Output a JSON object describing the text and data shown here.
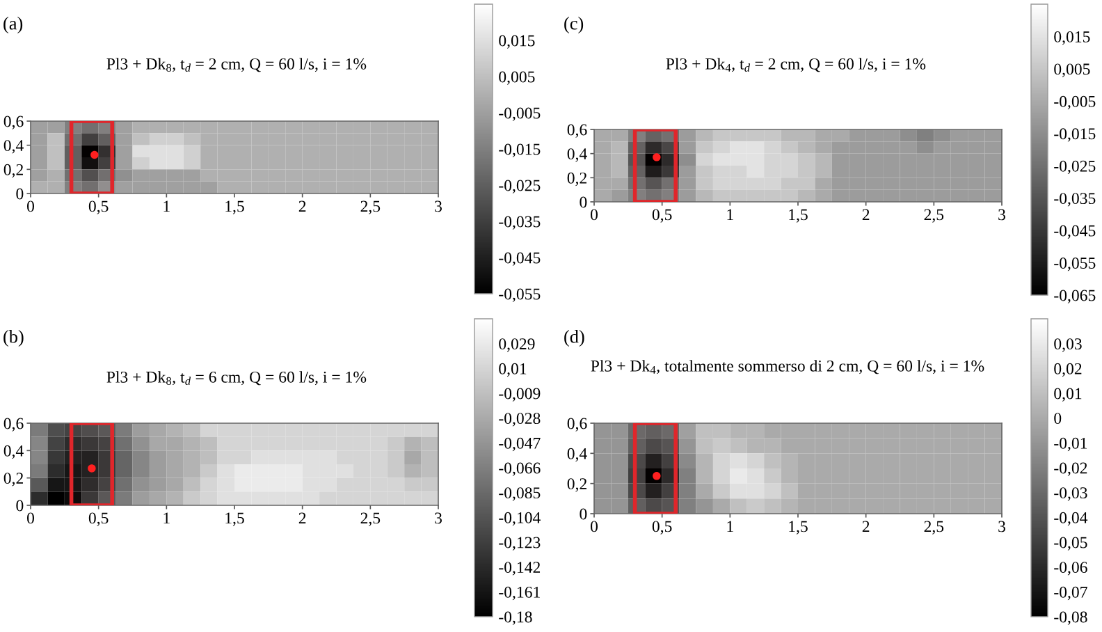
{
  "chart_data": [
    {
      "type": "heatmap",
      "title": "(a)",
      "subtitle": "Pl3 + Dk$_{8}$, t$_{d}$ = 2 cm, Q = 60 l/s, i = 1%",
      "x": [
        0.0625,
        0.1875,
        0.3125,
        0.4375,
        0.5625,
        0.6875,
        0.8125,
        0.9375,
        1.0625,
        1.1875,
        1.3125,
        1.4375,
        1.5625,
        1.6875,
        1.8125,
        1.9375,
        2.0625,
        2.1875,
        2.3125,
        2.4375,
        2.5625,
        2.6875,
        2.8125,
        2.9375
      ],
      "y": [
        0.55,
        0.45,
        0.35,
        0.25,
        0.15,
        0.05
      ],
      "cells": [
        [
          -0.005,
          -0.005,
          -0.015,
          -0.02,
          -0.015,
          -0.005,
          0,
          0,
          0,
          0,
          0,
          0,
          0,
          0,
          0,
          0,
          0,
          0,
          0,
          0,
          0,
          0,
          0,
          0
        ],
        [
          -0.005,
          0.005,
          -0.02,
          -0.035,
          -0.025,
          -0.005,
          0.005,
          0.01,
          0.01,
          0.005,
          0,
          0,
          0,
          0,
          0,
          0,
          0,
          0,
          0,
          0,
          0,
          0,
          0,
          0
        ],
        [
          -0.005,
          0.005,
          -0.025,
          -0.055,
          -0.04,
          -0.005,
          0.015,
          0.015,
          0.015,
          0.01,
          0,
          0,
          0,
          0,
          0,
          0,
          0,
          0,
          0,
          0,
          0,
          0,
          0,
          0
        ],
        [
          -0.005,
          0.005,
          -0.025,
          -0.05,
          -0.035,
          -0.005,
          0.01,
          0.015,
          0.015,
          0.01,
          0,
          0,
          0,
          0,
          0,
          0,
          0,
          0,
          0,
          0,
          0,
          0,
          0,
          0
        ],
        [
          -0.005,
          0,
          -0.02,
          -0.03,
          -0.02,
          -0.01,
          -0.005,
          -0.005,
          -0.005,
          -0.005,
          0,
          0,
          0,
          0,
          0,
          0,
          0,
          0,
          0,
          0,
          0,
          0,
          0,
          0
        ],
        [
          0,
          0,
          -0.015,
          -0.02,
          -0.01,
          -0.005,
          -0.005,
          -0.005,
          -0.005,
          -0.005,
          -0.005,
          0,
          0,
          0,
          0,
          0,
          0,
          0,
          0,
          0,
          0,
          0,
          0,
          0
        ]
      ],
      "xlim": [
        0,
        3
      ],
      "xticks": [
        0,
        {
          "value": 0.5,
          "label": "0,5"
        },
        1,
        {
          "value": 1.5,
          "label": "1,5"
        },
        2,
        {
          "value": 2.5,
          "label": "2,5"
        },
        3
      ],
      "ylim": [
        0,
        0.6
      ],
      "yticks": [
        0,
        {
          "value": 0.2,
          "label": "0,2"
        },
        {
          "value": 0.4,
          "label": "0,4"
        },
        {
          "value": 0.6,
          "label": "0,6"
        }
      ],
      "clim": [
        -0.055,
        0.025
      ],
      "cticks": [
        {
          "value": 0.015,
          "label": "0,015"
        },
        {
          "value": 0.005,
          "label": "0,005"
        },
        {
          "value": -0.005,
          "label": "-0,005"
        },
        {
          "value": -0.015,
          "label": "-0,015"
        },
        {
          "value": -0.025,
          "label": "-0,025"
        },
        {
          "value": -0.035,
          "label": "-0,035"
        },
        {
          "value": -0.045,
          "label": "-0,045"
        },
        {
          "value": -0.055,
          "label": "-0,055"
        }
      ],
      "bands": [
        {
          "axis": "x",
          "from": 0.3,
          "to": 0.6,
          "color": "#e0262b"
        }
      ],
      "series": [
        {
          "type": "scatter",
          "x": [
            0.47
          ],
          "values": [
            0.32
          ],
          "color": "#ff2020",
          "marker": "circle"
        }
      ]
    },
    {
      "type": "heatmap",
      "title": "(c)",
      "subtitle": "Pl3 + Dk$_{4}$, t$_{d}$ = 2 cm, Q = 60 l/s, i = 1%",
      "x": [
        0.0625,
        0.1875,
        0.3125,
        0.4375,
        0.5625,
        0.6875,
        0.8125,
        0.9375,
        1.0625,
        1.1875,
        1.3125,
        1.4375,
        1.5625,
        1.6875,
        1.8125,
        1.9375,
        2.0625,
        2.1875,
        2.3125,
        2.4375,
        2.5625,
        2.6875,
        2.8125,
        2.9375
      ],
      "y": [
        0.55,
        0.45,
        0.35,
        0.25,
        0.15,
        0.05
      ],
      "cells": [
        [
          -0.005,
          -0.005,
          -0.02,
          -0.03,
          -0.025,
          -0.01,
          0,
          0.005,
          0.005,
          0.005,
          0.005,
          0,
          0,
          -0.005,
          -0.005,
          -0.01,
          -0.01,
          -0.01,
          -0.015,
          -0.02,
          -0.015,
          -0.01,
          -0.01,
          -0.01
        ],
        [
          -0.005,
          0,
          -0.03,
          -0.05,
          -0.04,
          -0.01,
          0.005,
          0.01,
          0.015,
          0.015,
          0.01,
          0.005,
          0,
          -0.005,
          -0.01,
          -0.01,
          -0.01,
          -0.01,
          -0.01,
          -0.015,
          -0.01,
          -0.01,
          -0.01,
          -0.01
        ],
        [
          -0.005,
          0,
          -0.035,
          -0.065,
          -0.05,
          -0.015,
          0.01,
          0.015,
          0.015,
          0.015,
          0.01,
          0.01,
          0.005,
          0,
          -0.01,
          -0.01,
          -0.01,
          -0.01,
          -0.01,
          -0.01,
          -0.01,
          -0.01,
          -0.01,
          -0.01
        ],
        [
          -0.005,
          0,
          -0.03,
          -0.055,
          -0.045,
          -0.01,
          0.005,
          0.01,
          0.01,
          0.015,
          0.01,
          0.01,
          0.005,
          0,
          -0.01,
          -0.01,
          -0.01,
          -0.01,
          -0.01,
          -0.01,
          -0.01,
          -0.01,
          -0.01,
          -0.01
        ],
        [
          -0.005,
          -0.005,
          -0.025,
          -0.035,
          -0.025,
          -0.01,
          0.005,
          0.01,
          0.01,
          0.01,
          0.01,
          0.005,
          0.005,
          -0.005,
          -0.01,
          -0.01,
          -0.01,
          -0.01,
          -0.01,
          -0.01,
          -0.01,
          -0.01,
          -0.01,
          -0.01
        ],
        [
          -0.005,
          -0.01,
          -0.02,
          -0.025,
          -0.02,
          -0.01,
          0,
          0.005,
          0.005,
          0.005,
          0.005,
          0.005,
          0,
          -0.005,
          -0.01,
          -0.01,
          -0.01,
          -0.01,
          -0.01,
          -0.01,
          -0.01,
          -0.01,
          -0.01,
          -0.01
        ]
      ],
      "xlim": [
        0,
        3
      ],
      "xticks": [
        0,
        {
          "value": 0.5,
          "label": "0,5"
        },
        1,
        {
          "value": 1.5,
          "label": "1,5"
        },
        2,
        {
          "value": 2.5,
          "label": "2,5"
        },
        3
      ],
      "ylim": [
        0,
        0.6
      ],
      "yticks": [
        0,
        {
          "value": 0.2,
          "label": "0,2"
        },
        {
          "value": 0.4,
          "label": "0,4"
        },
        {
          "value": 0.6,
          "label": "0,6"
        }
      ],
      "clim": [
        -0.065,
        0.025
      ],
      "cticks": [
        {
          "value": 0.015,
          "label": "0,015"
        },
        {
          "value": 0.005,
          "label": "0,005"
        },
        {
          "value": -0.005,
          "label": "-0,005"
        },
        {
          "value": -0.015,
          "label": "-0,015"
        },
        {
          "value": -0.025,
          "label": "-0,025"
        },
        {
          "value": -0.035,
          "label": "-0,035"
        },
        {
          "value": -0.045,
          "label": "-0,045"
        },
        {
          "value": -0.055,
          "label": "-0,055"
        },
        {
          "value": -0.065,
          "label": "-0,065"
        }
      ],
      "bands": [
        {
          "axis": "x",
          "from": 0.3,
          "to": 0.6,
          "color": "#e0262b"
        }
      ],
      "series": [
        {
          "type": "scatter",
          "x": [
            0.46
          ],
          "values": [
            0.37
          ],
          "color": "#ff2020",
          "marker": "circle"
        }
      ]
    },
    {
      "type": "heatmap",
      "title": "(b)",
      "subtitle": "Pl3 + Dk$_{8}$, t$_{d}$ = 6 cm, Q = 60 l/s, i = 1%",
      "x": [
        0.0625,
        0.1875,
        0.3125,
        0.4375,
        0.5625,
        0.6875,
        0.8125,
        0.9375,
        1.0625,
        1.1875,
        1.3125,
        1.4375,
        1.5625,
        1.6875,
        1.8125,
        1.9375,
        2.0625,
        2.1875,
        2.3125,
        2.4375,
        2.5625,
        2.6875,
        2.8125,
        2.9375
      ],
      "y": [
        0.55,
        0.45,
        0.35,
        0.25,
        0.15,
        0.05
      ],
      "cells": [
        [
          -0.07,
          -0.11,
          -0.12,
          -0.11,
          -0.1,
          -0.07,
          -0.04,
          -0.03,
          -0.02,
          -0.01,
          0.01,
          0.01,
          0.01,
          0.01,
          0.01,
          0.01,
          0.01,
          0.01,
          0.01,
          0.01,
          0.01,
          0.01,
          0.01,
          0.01
        ],
        [
          -0.06,
          -0.12,
          -0.14,
          -0.13,
          -0.12,
          -0.08,
          -0.05,
          -0.03,
          -0.03,
          -0.02,
          -0.01,
          0.01,
          0.01,
          0.01,
          0.01,
          0.01,
          0.01,
          0.01,
          0.01,
          0.01,
          0.01,
          0,
          -0.02,
          -0.01
        ],
        [
          -0.06,
          -0.13,
          -0.15,
          -0.15,
          -0.13,
          -0.09,
          -0.06,
          -0.04,
          -0.03,
          -0.02,
          -0.01,
          0.01,
          0.01,
          0.02,
          0.02,
          0.02,
          0.02,
          0.02,
          0.01,
          0.01,
          0.01,
          0,
          -0.03,
          -0.01
        ],
        [
          -0.07,
          -0.14,
          -0.16,
          -0.15,
          -0.13,
          -0.09,
          -0.06,
          -0.04,
          -0.03,
          -0.02,
          0,
          0.02,
          0.03,
          0.03,
          0.03,
          0.03,
          0.02,
          0.02,
          0.02,
          0.01,
          0.01,
          0,
          -0.02,
          -0.01
        ],
        [
          -0.1,
          -0.16,
          -0.16,
          -0.14,
          -0.12,
          -0.08,
          -0.05,
          -0.04,
          -0.03,
          -0.01,
          0.01,
          0.02,
          0.03,
          0.03,
          0.03,
          0.03,
          0.02,
          0.02,
          0.01,
          0.01,
          0.01,
          0.01,
          0,
          0
        ],
        [
          -0.14,
          -0.18,
          -0.17,
          -0.13,
          -0.1,
          -0.07,
          -0.04,
          -0.03,
          -0.02,
          0,
          0.01,
          0.02,
          0.02,
          0.02,
          0.02,
          0.02,
          0.02,
          0.01,
          0.01,
          0.01,
          0.01,
          0.01,
          0.01,
          0.01
        ]
      ],
      "xlim": [
        0,
        3
      ],
      "xticks": [
        0,
        {
          "value": 0.5,
          "label": "0,5"
        },
        1,
        {
          "value": 1.5,
          "label": "1,5"
        },
        2,
        {
          "value": 2.5,
          "label": "2,5"
        },
        3
      ],
      "ylim": [
        0,
        0.6
      ],
      "yticks": [
        0,
        {
          "value": 0.2,
          "label": "0,2"
        },
        {
          "value": 0.4,
          "label": "0,4"
        },
        {
          "value": 0.6,
          "label": "0,6"
        }
      ],
      "clim": [
        -0.18,
        0.048
      ],
      "cticks": [
        {
          "value": 0.029,
          "label": "0,029"
        },
        {
          "value": 0.01,
          "label": "0,01"
        },
        {
          "value": -0.009,
          "label": "-0,009"
        },
        {
          "value": -0.028,
          "label": "-0,028"
        },
        {
          "value": -0.047,
          "label": "-0,047"
        },
        {
          "value": -0.066,
          "label": "-0,066"
        },
        {
          "value": -0.085,
          "label": "-0,085"
        },
        {
          "value": -0.104,
          "label": "-0,104"
        },
        {
          "value": -0.123,
          "label": "-0,123"
        },
        {
          "value": -0.142,
          "label": "-0,142"
        },
        {
          "value": -0.161,
          "label": "-0,161"
        },
        {
          "value": -0.18,
          "label": "-0,18"
        }
      ],
      "bands": [
        {
          "axis": "x",
          "from": 0.3,
          "to": 0.6,
          "color": "#e0262b"
        }
      ],
      "series": [
        {
          "type": "scatter",
          "x": [
            0.45
          ],
          "values": [
            0.27
          ],
          "color": "#ff2020",
          "marker": "circle"
        }
      ]
    },
    {
      "type": "heatmap",
      "title": "(d)",
      "subtitle": "Pl3 + Dk$_{4}$, totalmente sommerso di 2 cm, Q = 60 l/s, i = 1%",
      "x": [
        0.0625,
        0.1875,
        0.3125,
        0.4375,
        0.5625,
        0.6875,
        0.8125,
        0.9375,
        1.0625,
        1.1875,
        1.3125,
        1.4375,
        1.5625,
        1.6875,
        1.8125,
        1.9375,
        2.0625,
        2.1875,
        2.3125,
        2.4375,
        2.5625,
        2.6875,
        2.8125,
        2.9375
      ],
      "y": [
        0.55,
        0.45,
        0.35,
        0.25,
        0.15,
        0.05
      ],
      "cells": [
        [
          -0.01,
          -0.01,
          -0.03,
          -0.035,
          -0.03,
          -0.005,
          0.01,
          0.01,
          0.005,
          0.005,
          0,
          0,
          0,
          0,
          0,
          0,
          0,
          0,
          0,
          0,
          0,
          0,
          0,
          0
        ],
        [
          -0.01,
          -0.01,
          -0.035,
          -0.045,
          -0.04,
          -0.01,
          0.01,
          0.015,
          0.01,
          0.005,
          0.005,
          0,
          0,
          0,
          0,
          0,
          0,
          0,
          0,
          0,
          0,
          0,
          0,
          0
        ],
        [
          -0.01,
          -0.01,
          -0.045,
          -0.065,
          -0.05,
          -0.015,
          0.005,
          0.02,
          0.025,
          0.02,
          0.01,
          0.005,
          0,
          0,
          0,
          0,
          0,
          0,
          0,
          0,
          0,
          0,
          0,
          0
        ],
        [
          -0.01,
          -0.01,
          -0.05,
          -0.08,
          -0.06,
          -0.02,
          0.005,
          0.02,
          0.03,
          0.025,
          0.015,
          0.005,
          0,
          0,
          0,
          0,
          0,
          0,
          0,
          0,
          0,
          0,
          0,
          0
        ],
        [
          -0.01,
          -0.01,
          -0.045,
          -0.065,
          -0.05,
          -0.02,
          0,
          0.015,
          0.025,
          0.025,
          0.02,
          0.01,
          0,
          0,
          0,
          0,
          0,
          0,
          0,
          0,
          0,
          0,
          0,
          0
        ],
        [
          -0.01,
          -0.01,
          -0.035,
          -0.045,
          -0.04,
          -0.02,
          -0.01,
          0,
          0.01,
          0.015,
          0.01,
          0.005,
          0,
          0,
          0,
          0,
          0,
          0,
          0,
          0,
          0,
          0,
          0,
          0
        ]
      ],
      "xlim": [
        0,
        3
      ],
      "xticks": [
        0,
        {
          "value": 0.5,
          "label": "0,5"
        },
        1,
        {
          "value": 1.5,
          "label": "1,5"
        },
        2,
        {
          "value": 2.5,
          "label": "2,5"
        },
        3
      ],
      "ylim": [
        0,
        0.6
      ],
      "yticks": [
        0,
        {
          "value": 0.2,
          "label": "0,2"
        },
        {
          "value": 0.4,
          "label": "0,4"
        },
        {
          "value": 0.6,
          "label": "0,6"
        }
      ],
      "clim": [
        -0.08,
        0.04
      ],
      "cticks": [
        {
          "value": 0.03,
          "label": "0,03"
        },
        {
          "value": 0.02,
          "label": "0,02"
        },
        {
          "value": 0.01,
          "label": "0,01"
        },
        0,
        {
          "value": -0.01,
          "label": "-0,01"
        },
        {
          "value": -0.02,
          "label": "-0,02"
        },
        {
          "value": -0.03,
          "label": "-0,03"
        },
        {
          "value": -0.04,
          "label": "-0,04"
        },
        {
          "value": -0.05,
          "label": "-0,05"
        },
        {
          "value": -0.06,
          "label": "-0,06"
        },
        {
          "value": -0.07,
          "label": "-0,07"
        },
        {
          "value": -0.08,
          "label": "-0,08"
        }
      ],
      "bands": [
        {
          "axis": "x",
          "from": 0.3,
          "to": 0.6,
          "color": "#e0262b"
        }
      ],
      "series": [
        {
          "type": "scatter",
          "x": [
            0.46
          ],
          "values": [
            0.25
          ],
          "color": "#ff2020",
          "marker": "circle"
        }
      ]
    }
  ]
}
